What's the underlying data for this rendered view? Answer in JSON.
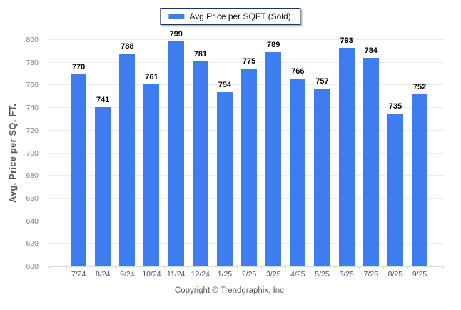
{
  "legend": {
    "label": "Avg Price per SQFT (Sold)"
  },
  "footer": {
    "copyright": "Copyright © Trendgraphix, Inc."
  },
  "colors": {
    "bar": "#3e7df0",
    "grid": "#ececec",
    "axis": "#d9d9d9",
    "ytick": "#7f7f7f",
    "xlabel": "#44546a",
    "value": "#000000",
    "legend_border": "#17375e",
    "title": "#595959"
  },
  "chart_data": {
    "type": "bar",
    "categories": [
      "7/24",
      "8/24",
      "9/24",
      "10/24",
      "11/24",
      "12/24",
      "1/25",
      "2/25",
      "3/25",
      "4/25",
      "5/25",
      "6/25",
      "7/25",
      "8/25",
      "9/25"
    ],
    "values": [
      770,
      741,
      788,
      761,
      799,
      781,
      754,
      775,
      789,
      766,
      757,
      793,
      784,
      735,
      752
    ],
    "title": "",
    "xlabel": "",
    "ylabel": "Avg. Price per SQ. FT.",
    "ylim": [
      600,
      800
    ],
    "ytick_step": 20,
    "grid": true,
    "legend_position": "top",
    "value_labels": true
  }
}
